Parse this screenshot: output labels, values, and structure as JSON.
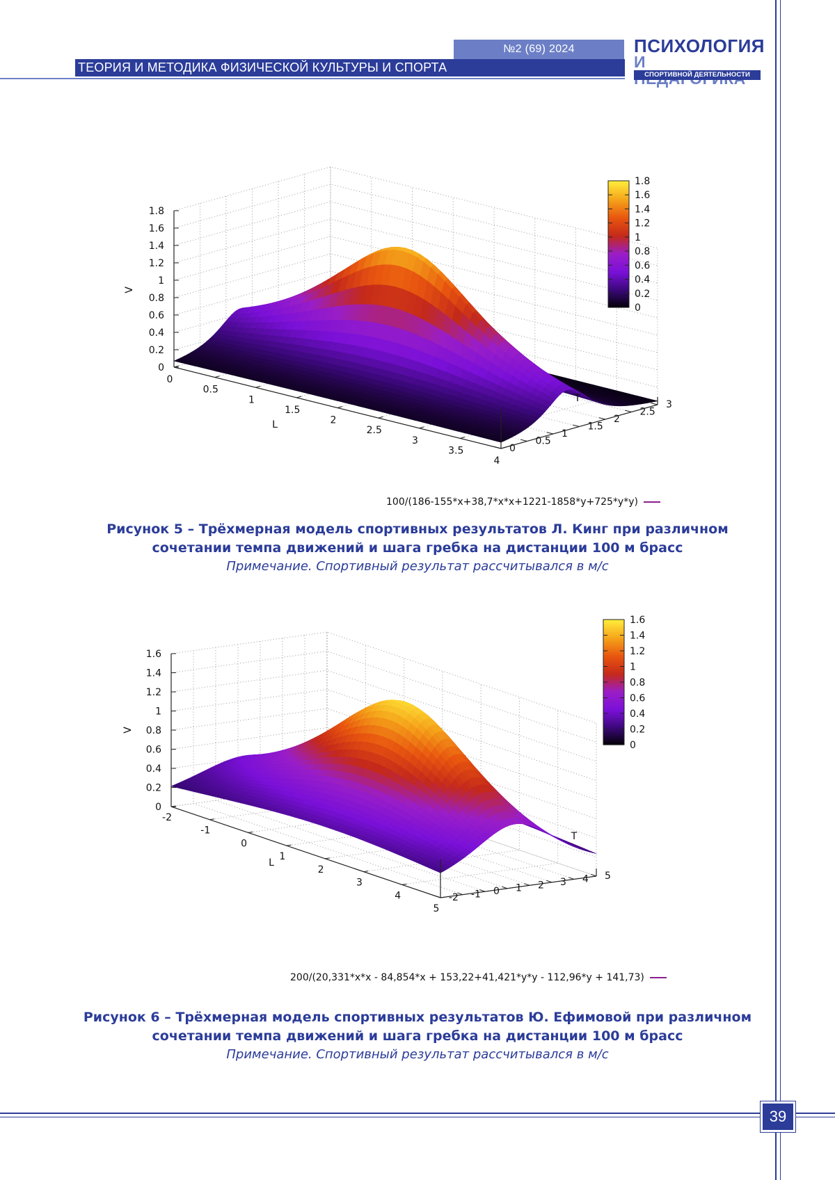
{
  "header": {
    "issue": "№2 (69) 2024",
    "section": "ТЕОРИЯ И МЕТОДИКА ФИЗИЧЕСКОЙ КУЛЬТУРЫ И СПОРТА",
    "logo_line1": "ПСИХОЛОГИЯ",
    "logo_line2": "И ПЕДАГОГИКА",
    "logo_line3": "СПОРТИВНОЙ ДЕЯТЕЛЬНОСТИ"
  },
  "colors": {
    "brand_dark": "#2b3c99",
    "brand_light": "#6c7fc6",
    "palette": [
      "#000000",
      "#3a0878",
      "#7a10d8",
      "#9a1ec8",
      "#c4291a",
      "#e8560f",
      "#f5a31a",
      "#ffe93a"
    ]
  },
  "figures": [
    {
      "zlabel": "V",
      "xlabel": "L",
      "ylabel": "T",
      "z_ticks": [
        "0",
        "0.2",
        "0.4",
        "0.6",
        "0.8",
        "1",
        "1.2",
        "1.4",
        "1.6",
        "1.8"
      ],
      "x_ticks": [
        "0",
        "0.5",
        "1",
        "1.5",
        "2",
        "2.5",
        "3",
        "3.5",
        "4"
      ],
      "y_ticks": [
        "0",
        "0.5",
        "1",
        "1.5",
        "2",
        "2.5",
        "3"
      ],
      "colorbar_ticks": [
        "0",
        "0.2",
        "0.4",
        "0.6",
        "0.8",
        "1",
        "1.2",
        "1.4",
        "1.6",
        "1.8"
      ],
      "formula": "100/(186-155*x+38,7*x*x+1221-1858*y+725*y*y)",
      "caption_title_line1": "Рисунок 5 –  Трёхмерная модель спортивных результатов Л. Кинг при различном",
      "caption_title_line2": "сочетании темпа движений и шага гребка на дистанции 100 м брасс",
      "caption_note": "Примечание. Спортивный результат рассчитывался в м/с"
    },
    {
      "zlabel": "V",
      "xlabel": "L",
      "ylabel": "T",
      "z_ticks": [
        "0",
        "0.2",
        "0.4",
        "0.6",
        "0.8",
        "1",
        "1.2",
        "1.4",
        "1.6"
      ],
      "x_ticks": [
        "-2",
        "-1",
        "0",
        "1",
        "2",
        "3",
        "4",
        "5"
      ],
      "y_ticks": [
        "-2",
        "-1",
        "0",
        "1",
        "2",
        "3",
        "4",
        "5"
      ],
      "colorbar_ticks": [
        "0",
        "0.2",
        "0.4",
        "0.6",
        "0.8",
        "1",
        "1.2",
        "1.4",
        "1.6"
      ],
      "formula": "200/(20,331*x*x - 84,854*x + 153,22+41,421*y*y - 112,96*y + 141,73)",
      "caption_title_line1": "Рисунок 6 –  Трёхмерная модель спортивных результатов Ю. Ефимовой при различном",
      "caption_title_line2": "сочетании темпа движений и шага гребка на дистанции 100 м брасс",
      "caption_note": "Примечание. Спортивный результат рассчитывался в м/с"
    }
  ],
  "footer": {
    "page_number": "39"
  }
}
